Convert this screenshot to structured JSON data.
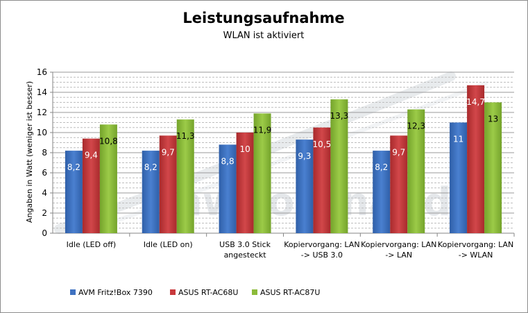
{
  "chart_data": {
    "type": "bar",
    "title": "Leistungsaufnahme",
    "subtitle": "WLAN ist aktiviert",
    "ylabel": "Angaben in Watt (weniger ist besser)",
    "xlabel": "",
    "ylim": [
      0,
      16
    ],
    "yticks": [
      0,
      2,
      4,
      6,
      8,
      10,
      12,
      14,
      16
    ],
    "grid": true,
    "legend_position": "bottom-left",
    "categories": [
      [
        "Idle (LED off)"
      ],
      [
        "Idle (LED on)"
      ],
      [
        "USB 3.0 Stick",
        "angesteckt"
      ],
      [
        "Kopiervorgang: LAN",
        "-> USB 3.0"
      ],
      [
        "Kopiervorgang: LAN",
        "-> LAN"
      ],
      [
        "Kopiervorgang: LAN",
        "-> WLAN"
      ]
    ],
    "series": [
      {
        "name": "AVM Fritz!Box 7390",
        "color": "#3f72c1",
        "values": [
          8.2,
          8.2,
          8.8,
          9.3,
          8.2,
          11
        ],
        "labels": [
          "8,2",
          "8,2",
          "8,8",
          "9,3",
          "8,2",
          "11"
        ],
        "label_color": "#ffffff"
      },
      {
        "name": "ASUS RT-AC68U",
        "color": "#c8393c",
        "values": [
          9.4,
          9.7,
          10,
          10.5,
          9.7,
          14.7
        ],
        "labels": [
          "9,4",
          "9,7",
          "10",
          "10,5",
          "9,7",
          "14,7"
        ],
        "label_color": "#ffffff"
      },
      {
        "name": "ASUS RT-AC87U",
        "color": "#8cbb3a",
        "values": [
          10.8,
          11.3,
          11.9,
          13.3,
          12.3,
          13
        ],
        "labels": [
          "10,8",
          "11,3",
          "11,9",
          "13,3",
          "12,3",
          "13"
        ],
        "label_color": "#000000"
      }
    ]
  },
  "watermark": "hw-journal.de"
}
